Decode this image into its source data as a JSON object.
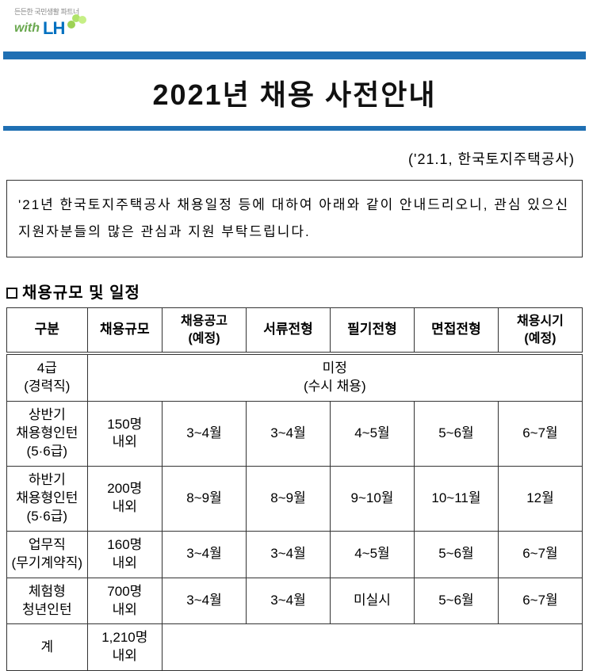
{
  "logo": {
    "tagline": "든든한 국민생활 파트너",
    "with": "with",
    "lh": "LH"
  },
  "title": "2021년 채용 사전안내",
  "date_line": "('21.1, 한국토지주택공사)",
  "intro": "'21년 한국토지주택공사 채용일정 등에 대하여 아래와 같이 안내드리오니, 관심 있으신 지원자분들의 많은 관심과 지원 부탁드립니다.",
  "section_heading": "채용규모 및 일정",
  "table": {
    "headers": [
      "구분",
      "채용규모",
      "채용공고\n(예정)",
      "서류전형",
      "필기전형",
      "면접전형",
      "채용시기\n(예정)"
    ],
    "rows": [
      {
        "label": "4급\n(경력직)",
        "merged": "미정\n(수시 채용)"
      },
      {
        "label": "상반기\n채용형인턴\n(5·6급)",
        "cells": [
          "150명\n내외",
          "3~4월",
          "3~4월",
          "4~5월",
          "5~6월",
          "6~7월"
        ]
      },
      {
        "label": "하반기\n채용형인턴\n(5·6급)",
        "cells": [
          "200명\n내외",
          "8~9월",
          "8~9월",
          "9~10월",
          "10~11월",
          "12월"
        ]
      },
      {
        "label": "업무직\n(무기계약직)",
        "cells": [
          "160명\n내외",
          "3~4월",
          "3~4월",
          "4~5월",
          "5~6월",
          "6~7월"
        ]
      },
      {
        "label": "체험형\n청년인턴",
        "cells": [
          "700명\n내외",
          "3~4월",
          "3~4월",
          "미실시",
          "5~6월",
          "6~7월"
        ]
      },
      {
        "label": "계",
        "cells": [
          "1,210명\n내외",
          "",
          "",
          "",
          "",
          ""
        ],
        "total": true
      }
    ]
  },
  "colors": {
    "title_bar": "#1f6fb3",
    "text": "#111111",
    "border": "#333333"
  }
}
